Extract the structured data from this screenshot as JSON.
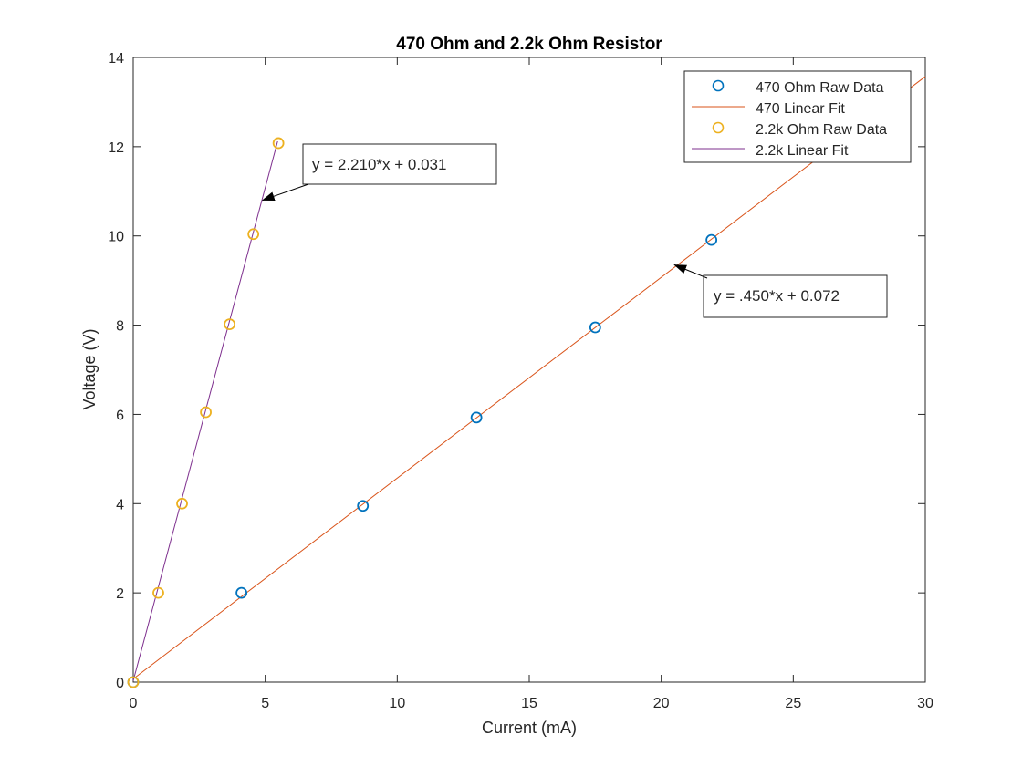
{
  "chart_data": {
    "type": "scatter",
    "title": "470 Ohm and 2.2k Ohm Resistor",
    "xlabel": "Current (mA)",
    "ylabel": "Voltage (V)",
    "xlim": [
      0,
      30
    ],
    "ylim": [
      0,
      14
    ],
    "xticks": [
      "0",
      "5",
      "10",
      "15",
      "20",
      "25",
      "30"
    ],
    "yticks": [
      "0",
      "2",
      "4",
      "6",
      "8",
      "10",
      "12",
      "14"
    ],
    "grid": false,
    "legend_position": "top-right",
    "colors": {
      "raw470": "#0072BD",
      "fit470": "#D95319",
      "raw22k": "#EDB120",
      "fit22k": "#7E2F8E"
    },
    "series": [
      {
        "name": "470 Ohm Raw Data",
        "kind": "points",
        "x": [
          0,
          4.1,
          8.7,
          13.0,
          17.5,
          21.9
        ],
        "y": [
          0,
          2.0,
          3.95,
          5.93,
          7.95,
          9.91
        ]
      },
      {
        "name": "470 Linear Fit",
        "kind": "line",
        "x": [
          0,
          30
        ],
        "y": [
          0.072,
          13.572
        ]
      },
      {
        "name": "2.2k Ohm Raw Data",
        "kind": "points",
        "x": [
          0,
          0.95,
          1.85,
          2.75,
          3.65,
          4.55,
          5.5
        ],
        "y": [
          0,
          2.0,
          4.0,
          6.05,
          8.02,
          10.04,
          12.08
        ]
      },
      {
        "name": "2.2k Linear Fit",
        "kind": "line",
        "x": [
          0,
          5.47
        ],
        "y": [
          0.031,
          12.12
        ]
      }
    ],
    "annotations": [
      {
        "text": "y = 2.210*x + 0.031",
        "target": [
          4.9,
          10.8
        ]
      },
      {
        "text": "y = .450*x + 0.072",
        "target": [
          20.5,
          9.35
        ]
      }
    ]
  }
}
